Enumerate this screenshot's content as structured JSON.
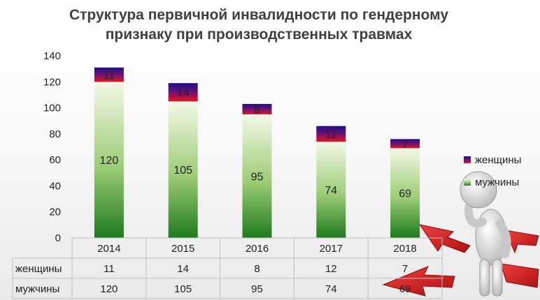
{
  "chart_data": {
    "type": "bar",
    "stacked": true,
    "title_lines": [
      "Структура первичной инвалидности по гендерному",
      "признаку при производственных травмах"
    ],
    "categories": [
      "2014",
      "2015",
      "2016",
      "2017",
      "2018"
    ],
    "series": [
      {
        "name": "мужчины",
        "values": [
          120,
          105,
          95,
          74,
          69
        ]
      },
      {
        "name": "женщины",
        "values": [
          11,
          14,
          8,
          12,
          7
        ]
      }
    ],
    "y_ticks": [
      "0",
      "20",
      "40",
      "60",
      "80",
      "100",
      "120",
      "140"
    ],
    "ylim": [
      0,
      140
    ],
    "grid": false,
    "legend": "right",
    "data_table": true,
    "colors": {
      "men_top": "#f4f8e6",
      "men_bottom": "#1e7a1e",
      "women_top": "#1a0f8a",
      "women_bottom": "#e8141a"
    }
  },
  "decoration": {
    "figure_icon": "thinking-person-with-arrows-icon"
  }
}
